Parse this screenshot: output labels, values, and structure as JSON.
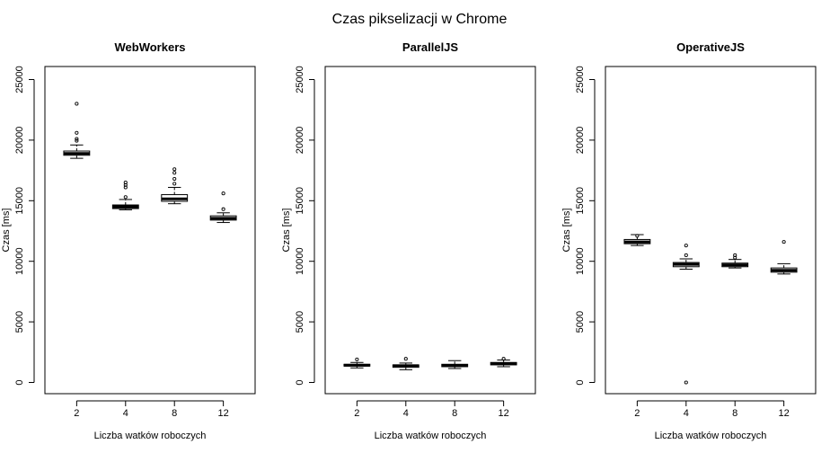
{
  "figure_title": "Czas pikselizacji w Chrome",
  "chart_data": [
    {
      "type": "boxplot",
      "title": "WebWorkers",
      "xlabel": "Liczba watków roboczych",
      "ylabel": "Czas [ms]",
      "ylim": [
        0,
        25000
      ],
      "yticks": [
        0,
        5000,
        10000,
        15000,
        20000,
        25000
      ],
      "categories": [
        "2",
        "4",
        "8",
        "12"
      ],
      "boxes": [
        {
          "whisker_low": 18500,
          "q1": 18750,
          "median": 18900,
          "q3": 19100,
          "whisker_high": 19600,
          "outliers": [
            19950,
            20100,
            20600,
            23000
          ]
        },
        {
          "whisker_low": 14250,
          "q1": 14350,
          "median": 14500,
          "q3": 14650,
          "whisker_high": 15100,
          "outliers": [
            15300,
            16100,
            16300,
            16500
          ]
        },
        {
          "whisker_low": 14750,
          "q1": 14950,
          "median": 15150,
          "q3": 15500,
          "whisker_high": 16100,
          "outliers": [
            16400,
            16800,
            17300,
            17600
          ]
        },
        {
          "whisker_low": 13200,
          "q1": 13400,
          "median": 13550,
          "q3": 13750,
          "whisker_high": 14000,
          "outliers": [
            14300,
            15600
          ]
        }
      ]
    },
    {
      "type": "boxplot",
      "title": "ParallelJS",
      "xlabel": "Liczba watków roboczych",
      "ylabel": "Czas [ms]",
      "ylim": [
        0,
        25000
      ],
      "yticks": [
        0,
        5000,
        10000,
        15000,
        20000,
        25000
      ],
      "categories": [
        "2",
        "4",
        "8",
        "12"
      ],
      "boxes": [
        {
          "whisker_low": 1200,
          "q1": 1350,
          "median": 1420,
          "q3": 1500,
          "whisker_high": 1650,
          "outliers": [
            1900
          ]
        },
        {
          "whisker_low": 1050,
          "q1": 1250,
          "median": 1380,
          "q3": 1450,
          "whisker_high": 1600,
          "outliers": [
            1950
          ]
        },
        {
          "whisker_low": 1150,
          "q1": 1300,
          "median": 1400,
          "q3": 1500,
          "whisker_high": 1800,
          "outliers": []
        },
        {
          "whisker_low": 1300,
          "q1": 1450,
          "median": 1560,
          "q3": 1650,
          "whisker_high": 1850,
          "outliers": [
            1950
          ]
        }
      ]
    },
    {
      "type": "boxplot",
      "title": "OperativeJS",
      "xlabel": "Liczba watków roboczych",
      "ylabel": "Czas [ms]",
      "ylim": [
        0,
        25000
      ],
      "yticks": [
        0,
        5000,
        10000,
        15000,
        20000,
        25000
      ],
      "categories": [
        "2",
        "4",
        "8",
        "12"
      ],
      "boxes": [
        {
          "whisker_low": 11300,
          "q1": 11450,
          "median": 11600,
          "q3": 11800,
          "whisker_high": 12200,
          "outliers": [
            12100
          ]
        },
        {
          "whisker_low": 9350,
          "q1": 9550,
          "median": 9750,
          "q3": 9900,
          "whisker_high": 10200,
          "outliers": [
            10500,
            11300,
            0
          ]
        },
        {
          "whisker_low": 9450,
          "q1": 9550,
          "median": 9700,
          "q3": 9850,
          "whisker_high": 10150,
          "outliers": [
            10300,
            10500
          ]
        },
        {
          "whisker_low": 8950,
          "q1": 9100,
          "median": 9250,
          "q3": 9450,
          "whisker_high": 9800,
          "outliers": [
            11600
          ]
        }
      ]
    }
  ]
}
